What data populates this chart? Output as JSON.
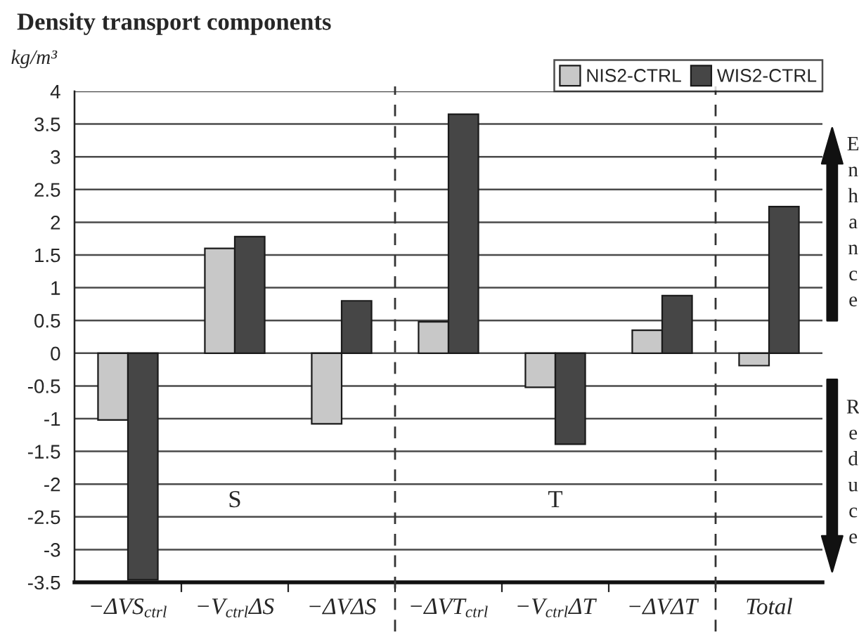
{
  "chart_data": {
    "type": "bar",
    "title": "Density transport components",
    "ylabel": "kg/m³",
    "categories": [
      "−ΔVS$_{ctrl}$",
      "−V$_{ctrl}$ΔS",
      "−ΔVΔS",
      "−ΔVT$_{ctrl}$",
      "−V$_{ctrl}$ΔT",
      "−ΔVΔT",
      "Total"
    ],
    "series": [
      {
        "name": "NIS2-CTRL",
        "color": "#c8c8c8",
        "values": [
          -1.02,
          1.6,
          -1.08,
          0.48,
          -0.52,
          0.35,
          -0.19
        ]
      },
      {
        "name": "WIS2-CTRL",
        "color": "#464646",
        "values": [
          -3.46,
          1.78,
          0.8,
          3.65,
          -1.39,
          0.88,
          2.24
        ]
      }
    ],
    "ylim": [
      -3.5,
      4
    ],
    "yticks": [
      -3.5,
      -3,
      -2.5,
      -2,
      -1.5,
      -1,
      -0.5,
      0,
      0.5,
      1,
      1.5,
      2,
      2.5,
      3,
      3.5,
      4
    ],
    "grid": "y",
    "legend": "top right",
    "annotations": [
      "S",
      "T",
      "Enhance",
      "Reduce"
    ]
  }
}
